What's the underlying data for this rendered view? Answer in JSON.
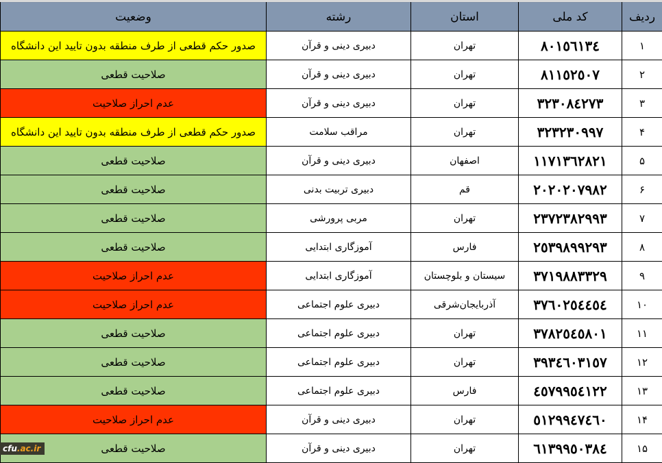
{
  "headers": {
    "row": "ردیف",
    "code": "کد ملی",
    "province": "استان",
    "field": "رشته",
    "status": "وضعیت"
  },
  "status_colors": {
    "صلاحیت قطعی": "#a9d08e",
    "عدم احراز صلاحیت": "#ff3300",
    "صدور حکم قطعی از طرف منطقه بدون تایید این دانشگاه": "#ffff00"
  },
  "rows": [
    {
      "row": "۱",
      "code": "٨٠١٥٦١٣٤",
      "province": "تهران",
      "field": "دبیری دینی و قرآن",
      "status": "صدور حکم قطعی از طرف منطقه بدون تایید این دانشگاه"
    },
    {
      "row": "۲",
      "code": "٨١١٥٢٥٠٧",
      "province": "تهران",
      "field": "دبیری دینی و قرآن",
      "status": "صلاحیت قطعی"
    },
    {
      "row": "۳",
      "code": "٣٢٣٠٨٤٢٧٣",
      "province": "تهران",
      "field": "دبیری دینی و قرآن",
      "status": "عدم احراز صلاحیت"
    },
    {
      "row": "۴",
      "code": "٣٢٣٢٣٠٩٩٧",
      "province": "تهران",
      "field": "مراقب سلامت",
      "status": "صدور حکم قطعی از طرف منطقه بدون تایید این دانشگاه"
    },
    {
      "row": "۵",
      "code": "١١٧١٣٦٢٨٢١",
      "province": "اصفهان",
      "field": "دبیری دینی و قرآن",
      "status": "صلاحیت قطعی"
    },
    {
      "row": "۶",
      "code": "٢٠٢٠٢٠٧٩٨٢",
      "province": "قم",
      "field": "دبیری تربیت بدنی",
      "status": "صلاحیت قطعی"
    },
    {
      "row": "۷",
      "code": "٢٣٧٢٣٨٢٩٩٣",
      "province": "تهران",
      "field": "مربی پرورشی",
      "status": "صلاحیت قطعی"
    },
    {
      "row": "۸",
      "code": "٢٥٣٩٨٩٩٢٩٣",
      "province": "فارس",
      "field": "آموزگاری ابتدایی",
      "status": "صلاحیت قطعی"
    },
    {
      "row": "۹",
      "code": "٣٧١٩٨٨٣٣٢٩",
      "province": "سیستان و بلوچستان",
      "field": "آموزگاری ابتدایی",
      "status": "عدم احراز صلاحیت"
    },
    {
      "row": "۱۰",
      "code": "٣٧٦٠٢٥٤٤٥٤",
      "province": "آذربایجان‌شرقی",
      "field": "دبیری علوم اجتماعی",
      "status": "عدم احراز صلاحیت"
    },
    {
      "row": "۱۱",
      "code": "٣٧٨٢٥٤٥٨٠١",
      "province": "تهران",
      "field": "دبیری علوم اجتماعی",
      "status": "صلاحیت قطعی"
    },
    {
      "row": "۱۲",
      "code": "٣٩٣٤٦٠٣١٥٧",
      "province": "تهران",
      "field": "دبیری علوم اجتماعی",
      "status": "صلاحیت قطعی"
    },
    {
      "row": "۱۳",
      "code": "٤٥٧٩٩٥٤١٢٢",
      "province": "فارس",
      "field": "دبیری علوم اجتماعی",
      "status": "صلاحیت قطعی"
    },
    {
      "row": "۱۴",
      "code": "٥١٢٩٩٤٧٤٦٠",
      "province": "تهران",
      "field": "دبیری دینی و قرآن",
      "status": "عدم احراز صلاحیت"
    },
    {
      "row": "۱۵",
      "code": "٦١٣٩٩٥٠٣٨٤",
      "province": "تهران",
      "field": "دبیری دینی و قرآن",
      "status": "صلاحیت قطعی"
    }
  ],
  "watermark": {
    "part1": "cfu",
    "part2": ".ac.ir"
  }
}
